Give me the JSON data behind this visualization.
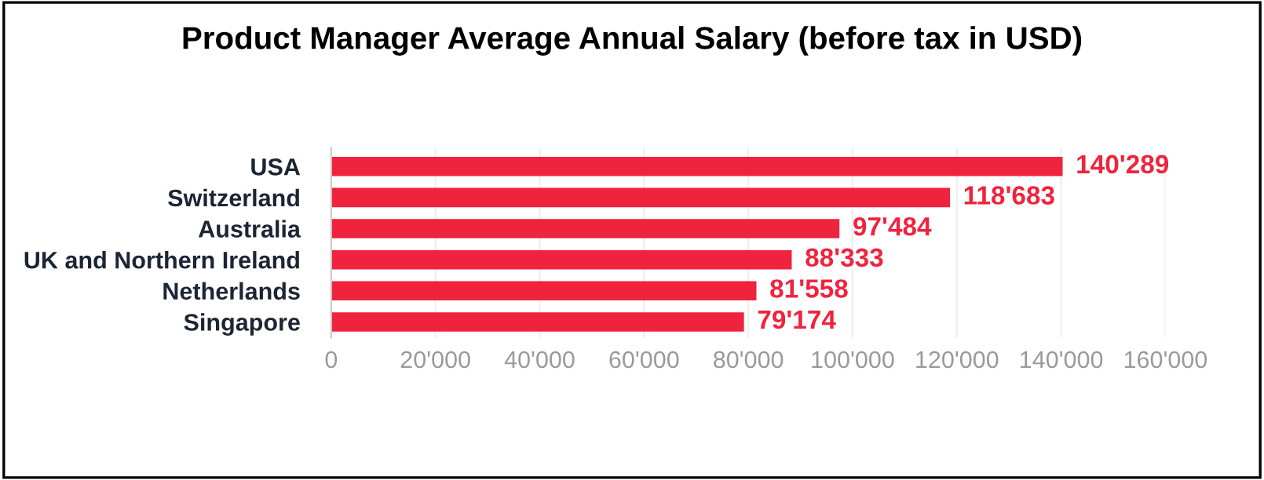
{
  "chart_data": {
    "type": "bar",
    "orientation": "horizontal",
    "title": "Product Manager Average Annual Salary (before tax in USD)",
    "categories": [
      "USA",
      "Switzerland",
      "Australia",
      "UK and Northern Ireland",
      "Netherlands",
      "Singapore"
    ],
    "values": [
      140289,
      118683,
      97484,
      88333,
      81558,
      79174
    ],
    "value_labels": [
      "140'289",
      "118'683",
      "97'484",
      "88'333",
      "81'558",
      "79'174"
    ],
    "color": "#f0233e",
    "xlim": [
      0,
      160000
    ],
    "xticks": [
      {
        "value": 0,
        "label": "0"
      },
      {
        "value": 20000,
        "label": "20'000"
      },
      {
        "value": 40000,
        "label": "40'000"
      },
      {
        "value": 60000,
        "label": "60'000"
      },
      {
        "value": 80000,
        "label": "80'000"
      },
      {
        "value": 100000,
        "label": "100'000"
      },
      {
        "value": 120000,
        "label": "120'000"
      },
      {
        "value": 140000,
        "label": "140'000"
      },
      {
        "value": 160000,
        "label": "160'000"
      }
    ],
    "grid": "x",
    "legend": false
  }
}
